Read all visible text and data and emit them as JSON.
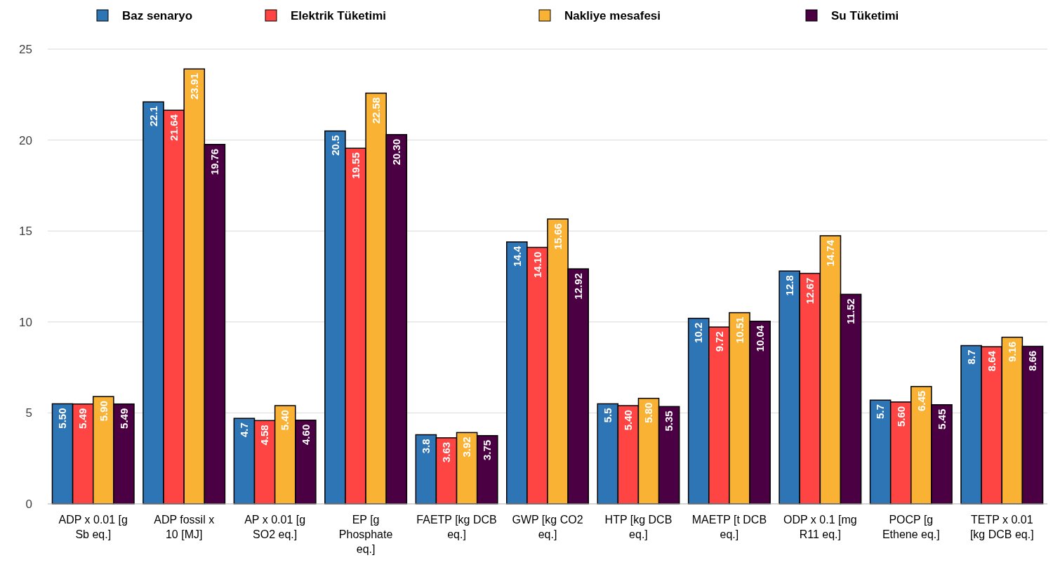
{
  "chart_data": {
    "type": "bar",
    "categories": [
      "ADP x 0.01 [g Sb eq.]",
      "ADP fossil x 10 [MJ]",
      "AP x 0.01 [g SO2 eq.]",
      "EP [g Phosphate eq.]",
      "FAETP [kg DCB eq.]",
      "GWP [kg CO2 eq.]",
      "HTP [kg DCB eq.]",
      "MAETP [t DCB eq.]",
      "ODP x 0.1 [mg R11 eq.]",
      "POCP [g Ethene eq.]",
      "TETP x 0.01 [kg DCB eq.]"
    ],
    "series": [
      {
        "name": "Baz senaryo",
        "color": "#2e75b6",
        "values": [
          5.5,
          22.1,
          4.7,
          20.5,
          3.8,
          14.4,
          5.5,
          10.2,
          12.8,
          5.7,
          8.7
        ],
        "value_labels": [
          "5.50",
          "22.1",
          "4.7",
          "20.5",
          "3.8",
          "14.4",
          "5.5",
          "10.2",
          "12.8",
          "5.7",
          "8.7"
        ]
      },
      {
        "name": "Elektrik Tüketimi",
        "color": "#ff4444",
        "values": [
          5.49,
          21.64,
          4.58,
          19.55,
          3.63,
          14.1,
          5.4,
          9.72,
          12.67,
          5.6,
          8.64
        ],
        "value_labels": [
          "5.49",
          "21.64",
          "4.58",
          "19.55",
          "3.63",
          "14.10",
          "5.40",
          "9.72",
          "12.67",
          "5.60",
          "8.64"
        ]
      },
      {
        "name": "Nakliye mesafesi",
        "color": "#f9b233",
        "values": [
          5.9,
          23.91,
          5.4,
          22.58,
          3.92,
          15.66,
          5.8,
          10.51,
          14.74,
          6.45,
          9.16
        ],
        "value_labels": [
          "5.90",
          "23.91",
          "5.40",
          "22.58",
          "3.92",
          "15.66",
          "5.80",
          "10.51",
          "14.74",
          "6.45",
          "9.16"
        ]
      },
      {
        "name": "Su Tüketimi",
        "color": "#4a0042",
        "values": [
          5.49,
          19.76,
          4.6,
          20.3,
          3.75,
          12.92,
          5.35,
          10.04,
          11.52,
          5.45,
          8.66
        ],
        "value_labels": [
          "5.49",
          "19.76",
          "4.60",
          "20.30",
          "3.75",
          "12.92",
          "5.35",
          "10.04",
          "11.52",
          "5.45",
          "8.66"
        ]
      }
    ],
    "ylim": [
      0,
      25
    ],
    "yticks": [
      0,
      5,
      10,
      15,
      20,
      25
    ],
    "grid": "y",
    "legend": "top"
  }
}
